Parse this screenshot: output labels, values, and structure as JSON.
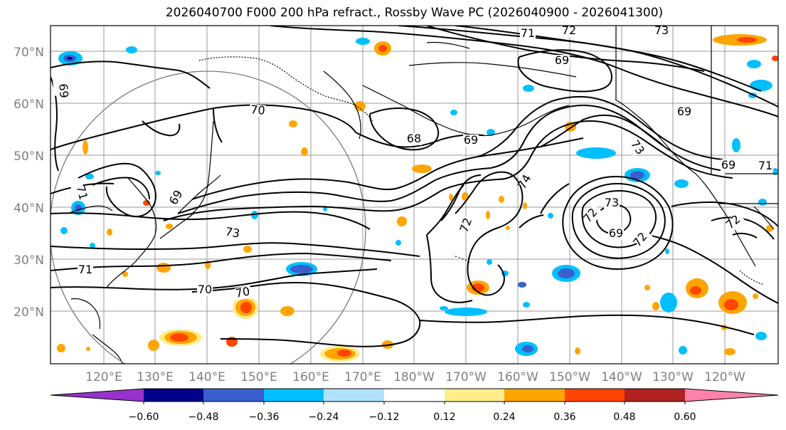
{
  "title": "2026040700 F000 200 hPa refract., Rossby Wave PC (2026040900 - 2026041300)",
  "axes": {
    "lat_labels": [
      "70°N",
      "60°N",
      "50°N",
      "40°N",
      "30°N",
      "20°N"
    ],
    "lon_labels": [
      "120°E",
      "130°E",
      "140°E",
      "150°E",
      "160°E",
      "170°E",
      "180°W",
      "170°W",
      "160°W",
      "150°W",
      "140°W",
      "130°W",
      "120°W"
    ]
  },
  "contour_labels": [
    "73",
    "72",
    "71",
    "69",
    "69",
    "70",
    "68",
    "69",
    "69",
    "73",
    "74",
    "69",
    "71",
    "73",
    "72",
    "71",
    "70",
    "70",
    "72",
    "69",
    "72",
    "69",
    "73",
    "72",
    "71"
  ],
  "colorbar": {
    "tick_labels": [
      "−0.60",
      "−0.48",
      "−0.36",
      "−0.24",
      "−0.12",
      "0.12",
      "0.24",
      "0.36",
      "0.48",
      "0.60"
    ],
    "colors": [
      "#9932cc",
      "#00008b",
      "#3a5fcd",
      "#00bfff",
      "#b0e2ff",
      "#ffffff",
      "#ffec8b",
      "#ffa500",
      "#ff4500",
      "#b22222",
      "#ff82ab"
    ]
  }
}
